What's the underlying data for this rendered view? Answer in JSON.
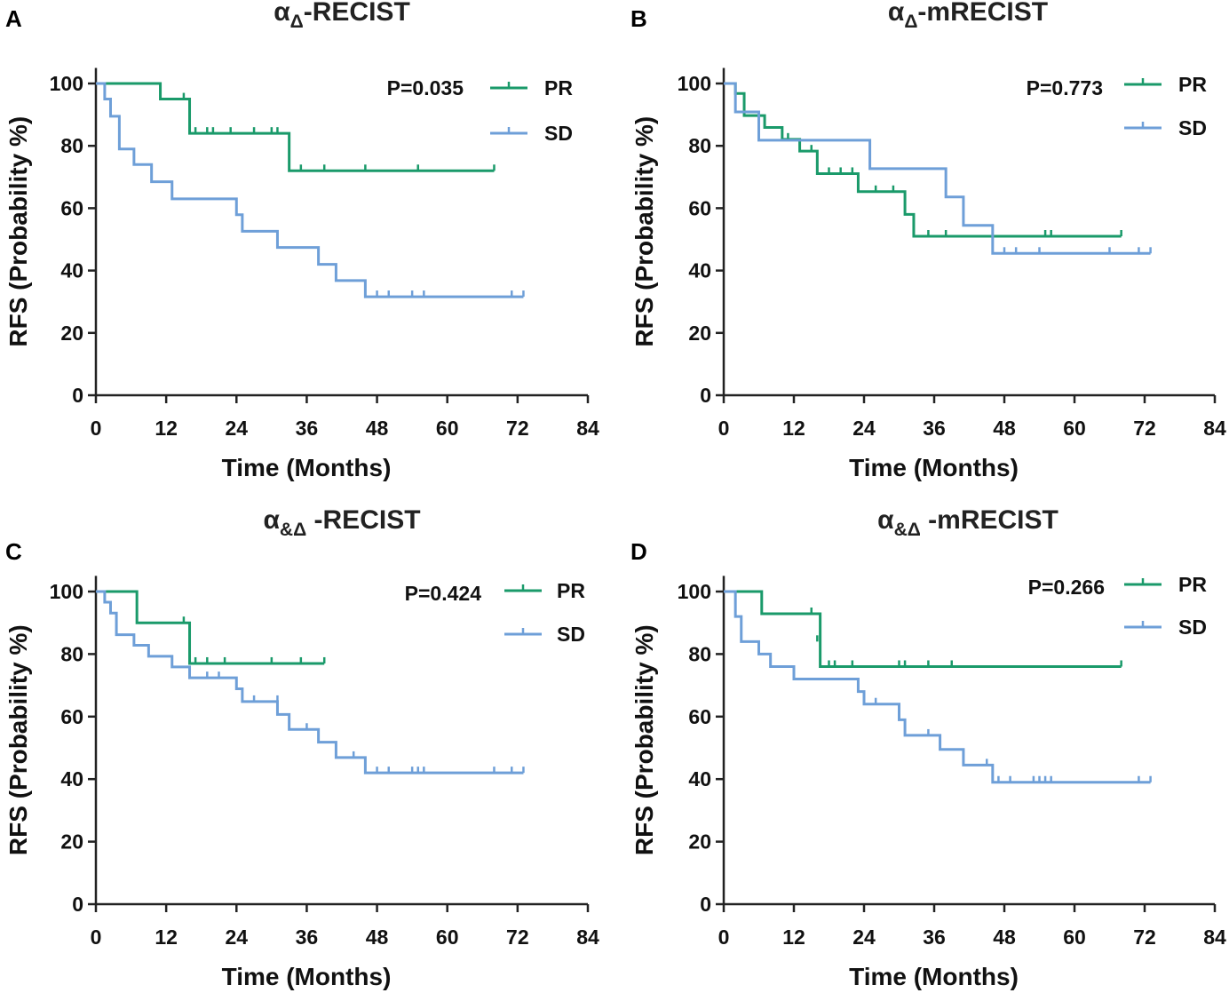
{
  "figure": {
    "colors": {
      "PR": "#1a9a6a",
      "SD": "#6e9fd8",
      "axis": "#222222"
    },
    "legend_entries": [
      "PR",
      "SD"
    ],
    "xlabel": "Time (Months)",
    "ylabel": "RFS (Probability %)"
  },
  "chart_data": [
    {
      "panel": "A",
      "type": "line",
      "step": "km",
      "title_main": "α",
      "title_sub": "Δ",
      "title_rest": "-RECIST",
      "pvalue": "P=0.035",
      "xlabel": "Time (Months)",
      "ylabel": "RFS (Probability %)",
      "xlim": [
        0,
        84
      ],
      "ylim": [
        0,
        105
      ],
      "xticks": [
        0,
        12,
        24,
        36,
        48,
        60,
        72,
        84
      ],
      "yticks": [
        0,
        20,
        40,
        60,
        80,
        100
      ],
      "series": [
        {
          "name": "PR",
          "color": "#1a9a6a",
          "steps": [
            [
              0,
              100
            ],
            [
              11,
              95
            ],
            [
              16,
              84
            ],
            [
              33,
              72
            ]
          ],
          "end": 68,
          "censors": [
            [
              15,
              95
            ],
            [
              16,
              84
            ],
            [
              17,
              84
            ],
            [
              19,
              84
            ],
            [
              20,
              84
            ],
            [
              23,
              84
            ],
            [
              27,
              84
            ],
            [
              30,
              84
            ],
            [
              31,
              84
            ],
            [
              35,
              72
            ],
            [
              39,
              72
            ],
            [
              46,
              72
            ],
            [
              55,
              72
            ],
            [
              68,
              72
            ]
          ]
        },
        {
          "name": "SD",
          "color": "#6e9fd8",
          "steps": [
            [
              0,
              100
            ],
            [
              1.5,
              95
            ],
            [
              2.5,
              89.5
            ],
            [
              4,
              79
            ],
            [
              6.5,
              74
            ],
            [
              9.5,
              68.5
            ],
            [
              13,
              63
            ],
            [
              24,
              57.9
            ],
            [
              25,
              52.6
            ],
            [
              31,
              47.4
            ],
            [
              38,
              42
            ],
            [
              41,
              36.8
            ],
            [
              46,
              31.6
            ]
          ],
          "end": 73,
          "censors": [
            [
              48,
              31.6
            ],
            [
              50,
              31.6
            ],
            [
              54,
              31.6
            ],
            [
              56,
              31.6
            ],
            [
              71,
              31.6
            ],
            [
              73,
              31.6
            ]
          ]
        }
      ]
    },
    {
      "panel": "B",
      "type": "line",
      "step": "km",
      "title_main": "α",
      "title_sub": "Δ",
      "title_rest": "-mRECIST",
      "pvalue": "P=0.773",
      "xlabel": "Time (Months)",
      "ylabel": "RFS (Probability %)",
      "xlim": [
        0,
        84
      ],
      "ylim": [
        0,
        105
      ],
      "xticks": [
        0,
        12,
        24,
        36,
        48,
        60,
        72,
        84
      ],
      "yticks": [
        0,
        20,
        40,
        60,
        80,
        100
      ],
      "series": [
        {
          "name": "PR",
          "color": "#1a9a6a",
          "steps": [
            [
              0,
              100
            ],
            [
              2,
              96.8
            ],
            [
              3.5,
              89.7
            ],
            [
              7,
              85.9
            ],
            [
              10,
              82.1
            ],
            [
              13,
              78.3
            ],
            [
              16,
              71.1
            ],
            [
              23,
              65.3
            ],
            [
              31,
              58
            ],
            [
              32.5,
              51
            ]
          ],
          "end": 68,
          "censors": [
            [
              11,
              82.1
            ],
            [
              15,
              78.3
            ],
            [
              18,
              71.1
            ],
            [
              20,
              71.1
            ],
            [
              22,
              71.1
            ],
            [
              26,
              65.3
            ],
            [
              29,
              65.3
            ],
            [
              35,
              51
            ],
            [
              38,
              51
            ],
            [
              55,
              51
            ],
            [
              56,
              51
            ],
            [
              68,
              51
            ]
          ]
        },
        {
          "name": "SD",
          "color": "#6e9fd8",
          "steps": [
            [
              0,
              100
            ],
            [
              2,
              90.9
            ],
            [
              6,
              81.8
            ],
            [
              25,
              72.7
            ],
            [
              38,
              63.6
            ],
            [
              41,
              54.5
            ],
            [
              46,
              45.5
            ]
          ],
          "end": 73,
          "censors": [
            [
              48,
              45.5
            ],
            [
              50,
              45.5
            ],
            [
              54,
              45.5
            ],
            [
              66,
              45.5
            ],
            [
              71,
              45.5
            ],
            [
              73,
              45.5
            ]
          ]
        }
      ]
    },
    {
      "panel": "C",
      "type": "line",
      "step": "km",
      "title_main": "α",
      "title_sub": "&Δ",
      "title_rest": " -RECIST",
      "pvalue": "P=0.424",
      "xlabel": "Time (Months)",
      "ylabel": "RFS (Probability %)",
      "xlim": [
        0,
        84
      ],
      "ylim": [
        0,
        105
      ],
      "xticks": [
        0,
        12,
        24,
        36,
        48,
        60,
        72,
        84
      ],
      "yticks": [
        0,
        20,
        40,
        60,
        80,
        100
      ],
      "series": [
        {
          "name": "PR",
          "color": "#1a9a6a",
          "steps": [
            [
              0,
              100
            ],
            [
              7,
              90
            ],
            [
              16,
              77
            ]
          ],
          "end": 39,
          "censors": [
            [
              15,
              90
            ],
            [
              17,
              77
            ],
            [
              19,
              77
            ],
            [
              22,
              77
            ],
            [
              30,
              77
            ],
            [
              35,
              77
            ],
            [
              39,
              77
            ]
          ]
        },
        {
          "name": "SD",
          "color": "#6e9fd8",
          "steps": [
            [
              0,
              100
            ],
            [
              1.5,
              96.6
            ],
            [
              2.5,
              93.1
            ],
            [
              3.5,
              86.2
            ],
            [
              6.5,
              82.8
            ],
            [
              9,
              79.3
            ],
            [
              13,
              75.9
            ],
            [
              16,
              72.4
            ],
            [
              24,
              68.9
            ],
            [
              25,
              64.8
            ],
            [
              31,
              60.7
            ],
            [
              33,
              55.9
            ],
            [
              38,
              51.8
            ],
            [
              41,
              46.9
            ],
            [
              46,
              42
            ]
          ],
          "end": 73,
          "censors": [
            [
              19,
              72.4
            ],
            [
              21,
              72.4
            ],
            [
              27,
              64.8
            ],
            [
              31,
              64.8
            ],
            [
              36,
              55.9
            ],
            [
              44,
              46.9
            ],
            [
              48,
              42
            ],
            [
              50,
              42
            ],
            [
              54,
              42
            ],
            [
              55,
              42
            ],
            [
              56,
              42
            ],
            [
              68,
              42
            ],
            [
              71,
              42
            ],
            [
              73,
              42
            ]
          ]
        }
      ]
    },
    {
      "panel": "D",
      "type": "line",
      "step": "km",
      "title_main": "α",
      "title_sub": "&Δ",
      "title_rest": " -mRECIST",
      "pvalue": "P=0.266",
      "xlabel": "Time (Months)",
      "ylabel": "RFS (Probability %)",
      "xlim": [
        0,
        84
      ],
      "ylim": [
        0,
        105
      ],
      "xticks": [
        0,
        12,
        24,
        36,
        48,
        60,
        72,
        84
      ],
      "yticks": [
        0,
        20,
        40,
        60,
        80,
        100
      ],
      "series": [
        {
          "name": "PR",
          "color": "#1a9a6a",
          "steps": [
            [
              0,
              100
            ],
            [
              6.5,
              92.9
            ],
            [
              16.5,
              76
            ]
          ],
          "end": 68,
          "censors": [
            [
              15,
              92.9
            ],
            [
              16,
              84
            ],
            [
              18,
              76
            ],
            [
              19,
              76
            ],
            [
              22,
              76
            ],
            [
              30,
              76
            ],
            [
              31,
              76
            ],
            [
              35,
              76
            ],
            [
              39,
              76
            ],
            [
              68,
              76
            ]
          ]
        },
        {
          "name": "SD",
          "color": "#6e9fd8",
          "steps": [
            [
              0,
              100
            ],
            [
              2,
              92
            ],
            [
              3,
              84
            ],
            [
              6,
              80
            ],
            [
              8,
              76
            ],
            [
              12,
              72
            ],
            [
              23,
              68
            ],
            [
              24,
              64
            ],
            [
              30,
              59
            ],
            [
              31,
              54
            ],
            [
              37,
              49.5
            ],
            [
              41,
              44.5
            ],
            [
              46,
              39
            ]
          ],
          "end": 73,
          "censors": [
            [
              2,
              96
            ],
            [
              26,
              64
            ],
            [
              35,
              54
            ],
            [
              45,
              44.5
            ],
            [
              47,
              39
            ],
            [
              49,
              39
            ],
            [
              53,
              39
            ],
            [
              54,
              39
            ],
            [
              55,
              39
            ],
            [
              56,
              39
            ],
            [
              71,
              39
            ],
            [
              73,
              39
            ]
          ]
        }
      ]
    }
  ]
}
